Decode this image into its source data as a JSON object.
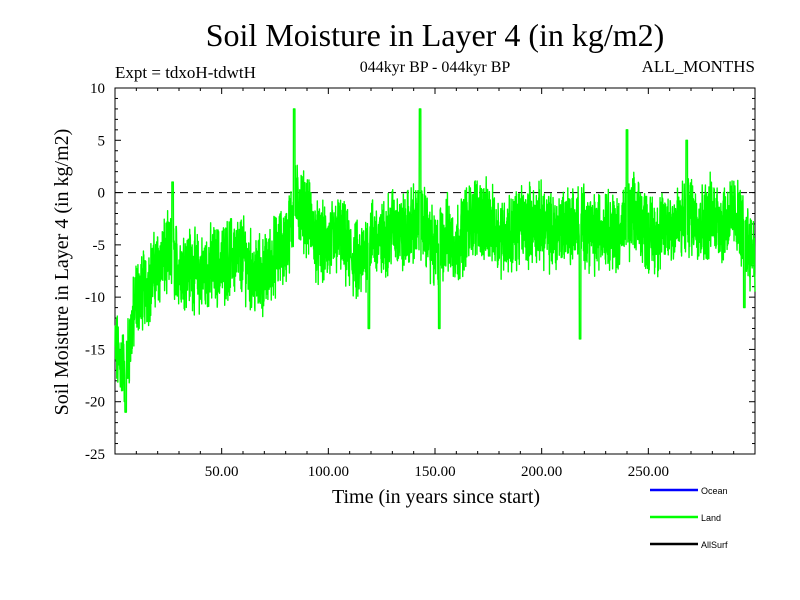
{
  "chart_data": {
    "type": "line",
    "title": "Soil Moisture in Layer 4 (in kg/m2)",
    "subtitle_left": "Expt = tdxoH-tdwtH",
    "subtitle_center": "044kyr BP - 044kyr BP",
    "subtitle_right": "ALL_MONTHS",
    "xlabel": "Time (in years since start)",
    "ylabel": "Soil Moisture in Layer 4 (in kg/m2)",
    "xlim": [
      0,
      300
    ],
    "ylim": [
      -25,
      10
    ],
    "x_ticks": [
      50,
      100,
      150,
      200,
      250
    ],
    "x_tick_labels": [
      "50.00",
      "100.00",
      "150.00",
      "200.00",
      "250.00"
    ],
    "y_ticks": [
      -25,
      -20,
      -15,
      -10,
      -5,
      0,
      5,
      10
    ],
    "y_tick_labels": [
      "-25",
      "-20",
      "-15",
      "-10",
      "-5",
      "0",
      "5",
      "10"
    ],
    "zero_line": true,
    "grid": false,
    "legend_position": "bottom-right",
    "legend": [
      {
        "name": "Ocean",
        "color": "#0000ff"
      },
      {
        "name": "Land",
        "color": "#00ff00"
      },
      {
        "name": "AllSurf",
        "color": "#000000"
      }
    ],
    "series": [
      {
        "name": "Land",
        "color": "#00ff00",
        "x": [
          0,
          5,
          10,
          15,
          20,
          25,
          30,
          35,
          40,
          45,
          50,
          55,
          60,
          65,
          70,
          75,
          80,
          85,
          90,
          95,
          100,
          105,
          110,
          115,
          120,
          125,
          130,
          135,
          140,
          145,
          150,
          155,
          160,
          165,
          170,
          175,
          180,
          185,
          190,
          195,
          200,
          205,
          210,
          215,
          220,
          225,
          230,
          235,
          240,
          245,
          250,
          255,
          260,
          265,
          270,
          275,
          280,
          285,
          290,
          295,
          300
        ],
        "y": [
          -15,
          -17,
          -10,
          -9,
          -7,
          -6,
          -7,
          -7,
          -8,
          -7,
          -7,
          -6,
          -6,
          -8,
          -8,
          -6,
          -5,
          -1,
          -2,
          -5,
          -5,
          -4,
          -6,
          -7,
          -4,
          -5,
          -3,
          -4,
          -3,
          -3,
          -6,
          -4,
          -5,
          -3,
          -2,
          -3,
          -4,
          -4,
          -3,
          -3,
          -3,
          -4,
          -3,
          -3,
          -3,
          -4,
          -3,
          -4,
          -3,
          -2,
          -4,
          -4,
          -3,
          -3,
          -2,
          -3,
          -2,
          -3,
          -2,
          -4,
          -6
        ],
        "highlights": [
          {
            "x": 5,
            "y": -21
          },
          {
            "x": 27,
            "y": 1
          },
          {
            "x": 84,
            "y": 8
          },
          {
            "x": 143,
            "y": 8
          },
          {
            "x": 119,
            "y": -13
          },
          {
            "x": 152,
            "y": -13
          },
          {
            "x": 218,
            "y": -14
          },
          {
            "x": 240,
            "y": 6
          },
          {
            "x": 268,
            "y": 5
          },
          {
            "x": 295,
            "y": -11
          }
        ]
      }
    ]
  }
}
